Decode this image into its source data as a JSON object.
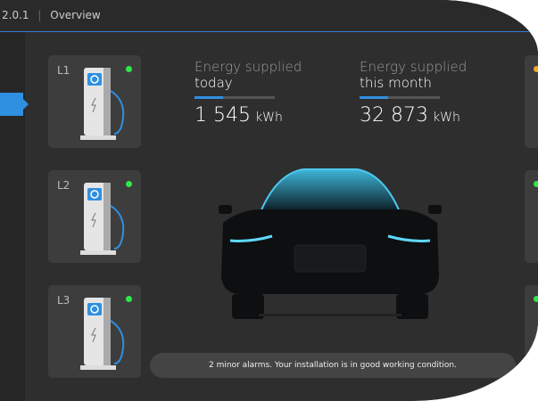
{
  "header": {
    "version": "2.0.1",
    "title": "Overview"
  },
  "chargers": [
    {
      "label": "L1"
    },
    {
      "label": "L2"
    },
    {
      "label": "L3"
    }
  ],
  "energy": [
    {
      "label": "Energy supplied",
      "period": "today",
      "value": "1 545",
      "unit": "kWh"
    },
    {
      "label": "Energy supplied",
      "period": "this month",
      "value": "32 873",
      "unit": "kWh"
    }
  ],
  "status": "2 minor alarms. Your installation is in good working condition."
}
